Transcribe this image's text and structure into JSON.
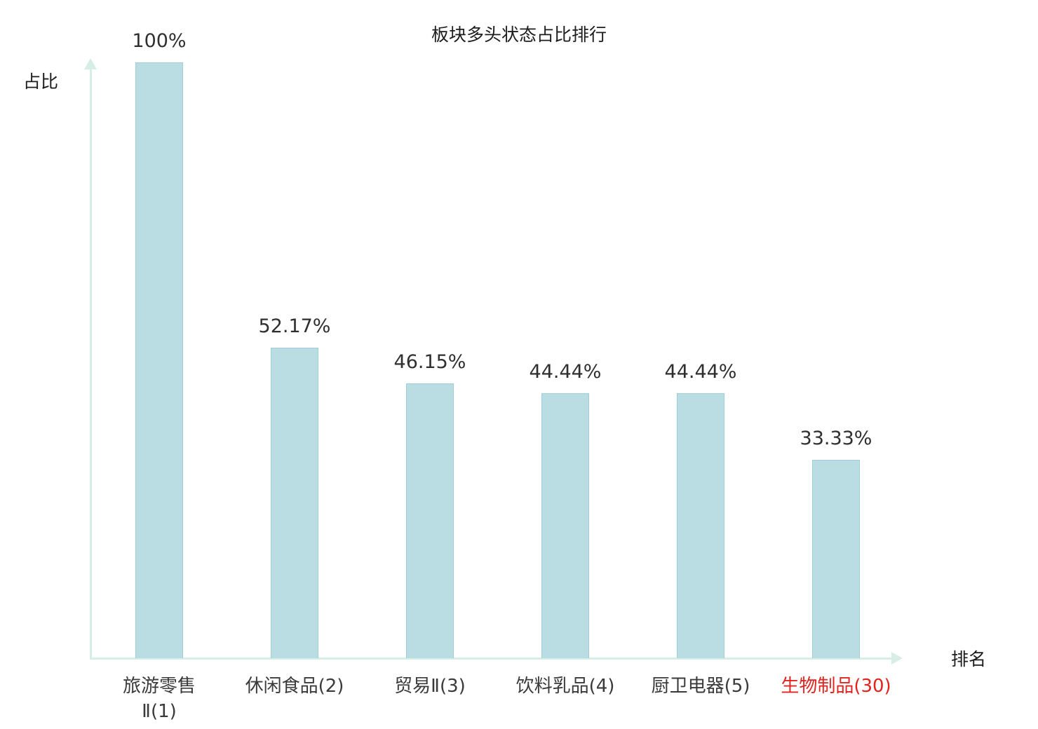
{
  "chart_data": {
    "type": "bar",
    "title": "板块多头状态占比排行",
    "xlabel": "排名",
    "ylabel": "占比",
    "categories": [
      "旅游零售\nⅡ(1)",
      "休闲食品(2)",
      "贸易Ⅱ(3)",
      "饮料乳品(4)",
      "厨卫电器(5)",
      "生物制品(30)"
    ],
    "values": [
      100,
      52.17,
      46.15,
      44.44,
      44.44,
      33.33
    ],
    "value_labels": [
      "100%",
      "52.17%",
      "46.15%",
      "44.44%",
      "44.44%",
      "33.33%"
    ],
    "highlight_index": 5,
    "ylim": [
      0,
      100
    ],
    "grid": false,
    "legend_position": "none",
    "colors": {
      "bar_fill": "#b9dde3",
      "bar_border": "#9fced6",
      "axis": "#d6eee6",
      "label": "#3a3a3a",
      "highlight_label": "#e02420",
      "background": "#ffffff"
    }
  }
}
